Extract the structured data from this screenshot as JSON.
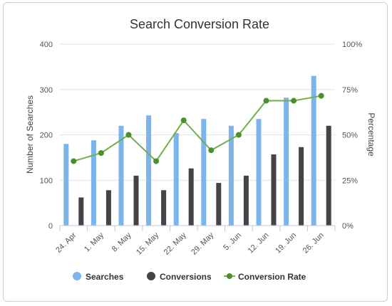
{
  "chart_data": {
    "type": "bar",
    "title": "Search Conversion Rate",
    "categories": [
      "24. Apr",
      "1. May",
      "8. May",
      "15. May",
      "22. May",
      "29. May",
      "5. Jun",
      "12. Jun",
      "19. Jun",
      "26. Jun"
    ],
    "ylabel": "Number of Searches",
    "ylabel_right": "Percentage",
    "ylim": [
      0,
      400
    ],
    "ylim_right": [
      0,
      100
    ],
    "y_ticks": [
      "0",
      "100",
      "200",
      "300",
      "400"
    ],
    "y_ticks_right": [
      "0%",
      "25%",
      "50%",
      "75%",
      "100%"
    ],
    "grid": true,
    "legend_position": "bottom",
    "series": [
      {
        "name": "Searches",
        "type": "bar",
        "axis": "left",
        "color": "#7cb5ec",
        "values": [
          180,
          188,
          220,
          243,
          204,
          235,
          220,
          235,
          282,
          330
        ]
      },
      {
        "name": "Conversions",
        "type": "bar",
        "axis": "left",
        "color": "#434348",
        "values": [
          62,
          78,
          110,
          78,
          126,
          94,
          110,
          157,
          173,
          220
        ]
      },
      {
        "name": "Conversion Rate",
        "type": "line",
        "axis": "right",
        "color": "#4a8f2a",
        "values": [
          35.5,
          40,
          50,
          35.5,
          58,
          41.5,
          50,
          68.8,
          68.8,
          71.5
        ]
      }
    ]
  }
}
